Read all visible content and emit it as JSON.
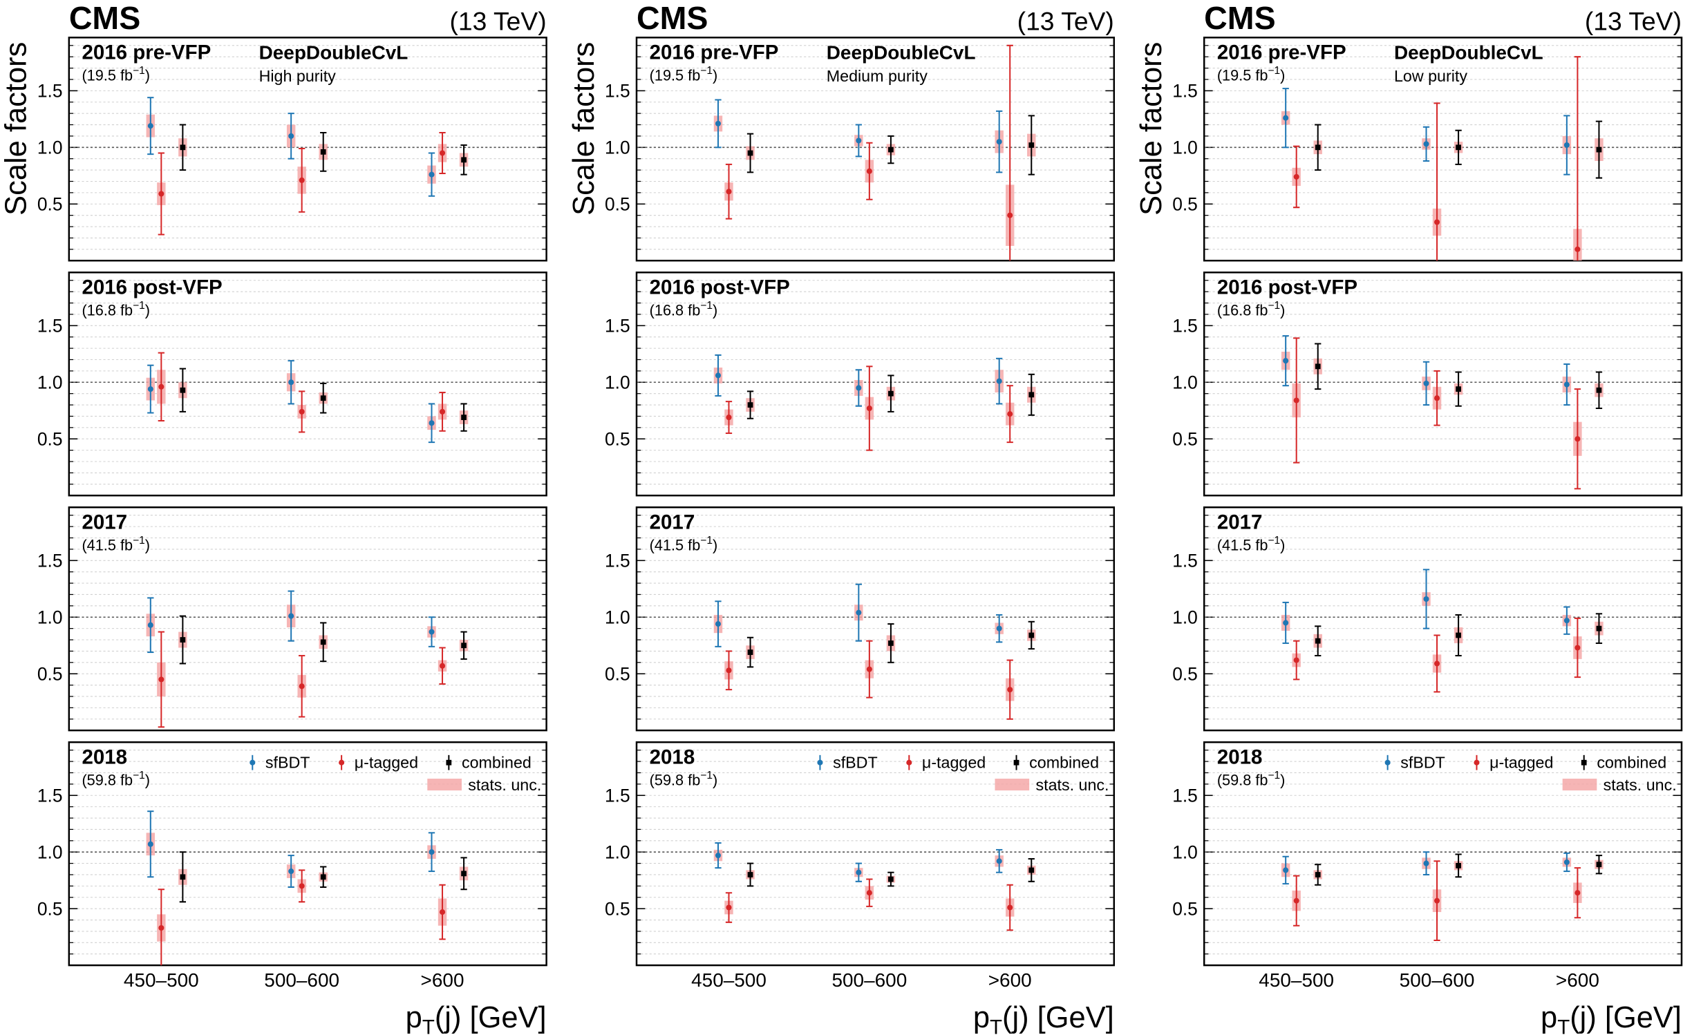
{
  "chart_data": [
    {
      "type": "errorbar",
      "cms_label": "CMS",
      "energy": "(13 TeV)",
      "ylabel": "Scale factors",
      "xlabel": [
        "p",
        "T",
        "(j) [GeV]"
      ],
      "tagger": "DeepDoubleCvL",
      "purity": "High purity",
      "categories": [
        "450–500",
        "500–600",
        ">600"
      ],
      "ylim": [
        0,
        1.97
      ],
      "yticks": [
        0.5,
        {
          "value": 1,
          "label": "1.0"
        },
        1.5
      ],
      "minor_yticks": [
        0.1,
        0.2,
        0.3,
        0.4,
        0.6,
        0.7,
        0.8,
        0.9,
        1.1,
        1.2,
        1.3,
        1.4,
        1.6,
        1.7,
        1.8,
        1.9
      ],
      "grid": true,
      "reference_line": 1,
      "legend": "upper right",
      "series": [
        {
          "name": "sfBDT",
          "color": "#1f77b4"
        },
        {
          "name": "μ-tagged",
          "color": "#d62728"
        },
        {
          "name": "combined",
          "color": "#000000"
        }
      ],
      "stat_label": "stats. unc.",
      "stat_color": "#f4a3a3",
      "panels": [
        {
          "period": "2016 pre-VFP",
          "lumi": [
            "(19.5 fb",
            "−1",
            ")"
          ],
          "series": [
            {
              "values": [
                1.19,
                1.1,
                0.76
              ],
              "errors": [
                0.25,
                0.2,
                0.19
              ],
              "stat": [
                0.1,
                0.1,
                0.08
              ]
            },
            {
              "values": [
                0.59,
                0.71,
                0.95
              ],
              "errors": [
                0.36,
                0.28,
                0.18
              ],
              "stat": [
                0.1,
                0.12,
                0.08
              ]
            },
            {
              "values": [
                1.0,
                0.96,
                0.89
              ],
              "errors": [
                0.2,
                0.17,
                0.13
              ],
              "stat": [
                0.08,
                0.07,
                0.06
              ]
            }
          ]
        },
        {
          "period": "2016 post-VFP",
          "lumi": [
            "(16.8 fb",
            "−1",
            ")"
          ],
          "series": [
            {
              "values": [
                0.94,
                1.0,
                0.64
              ],
              "errors": [
                0.21,
                0.19,
                0.17
              ],
              "stat": [
                0.1,
                0.08,
                0.06
              ]
            },
            {
              "values": [
                0.96,
                0.74,
                0.74
              ],
              "errors": [
                0.3,
                0.18,
                0.17
              ],
              "stat": [
                0.15,
                0.06,
                0.07
              ]
            },
            {
              "values": [
                0.93,
                0.86,
                0.69
              ],
              "errors": [
                0.19,
                0.13,
                0.12
              ],
              "stat": [
                0.07,
                0.05,
                0.06
              ]
            }
          ]
        },
        {
          "period": "2017",
          "lumi": [
            "(41.5 fb",
            "−1",
            ")"
          ],
          "series": [
            {
              "values": [
                0.93,
                1.01,
                0.87
              ],
              "errors": [
                0.24,
                0.22,
                0.13
              ],
              "stat": [
                0.1,
                0.1,
                0.05
              ]
            },
            {
              "values": [
                0.45,
                0.39,
                0.57
              ],
              "errors": [
                0.42,
                0.27,
                0.16
              ],
              "stat": [
                0.15,
                0.1,
                0.05
              ]
            },
            {
              "values": [
                0.8,
                0.78,
                0.75
              ],
              "errors": [
                0.21,
                0.17,
                0.12
              ],
              "stat": [
                0.07,
                0.06,
                0.05
              ]
            }
          ]
        },
        {
          "period": "2018",
          "lumi": [
            "(59.8 fb",
            "−1",
            ")"
          ],
          "series": [
            {
              "values": [
                1.07,
                0.83,
                1.0
              ],
              "errors": [
                0.29,
                0.14,
                0.17
              ],
              "stat": [
                0.1,
                0.06,
                0.06
              ]
            },
            {
              "values": [
                0.33,
                0.7,
                0.47
              ],
              "errors": [
                0.34,
                0.14,
                0.24
              ],
              "stat": [
                0.12,
                0.06,
                0.12
              ]
            },
            {
              "values": [
                0.78,
                0.78,
                0.81
              ],
              "errors": [
                0.22,
                0.09,
                0.14
              ],
              "stat": [
                0.07,
                0.04,
                0.06
              ]
            }
          ]
        }
      ]
    },
    {
      "type": "errorbar",
      "cms_label": "CMS",
      "energy": "(13 TeV)",
      "ylabel": "Scale factors",
      "xlabel": [
        "p",
        "T",
        "(j) [GeV]"
      ],
      "tagger": "DeepDoubleCvL",
      "purity": "Medium purity",
      "categories": [
        "450–500",
        "500–600",
        ">600"
      ],
      "ylim": [
        0,
        1.97
      ],
      "yticks": [
        0.5,
        {
          "value": 1,
          "label": "1.0"
        },
        1.5
      ],
      "minor_yticks": [
        0.1,
        0.2,
        0.3,
        0.4,
        0.6,
        0.7,
        0.8,
        0.9,
        1.1,
        1.2,
        1.3,
        1.4,
        1.6,
        1.7,
        1.8,
        1.9
      ],
      "grid": true,
      "reference_line": 1,
      "legend": "upper right",
      "series": [
        {
          "name": "sfBDT",
          "color": "#1f77b4"
        },
        {
          "name": "μ-tagged",
          "color": "#d62728"
        },
        {
          "name": "combined",
          "color": "#000000"
        }
      ],
      "stat_label": "stats. unc.",
      "stat_color": "#f4a3a3",
      "panels": [
        {
          "period": "2016 pre-VFP",
          "lumi": [
            "(19.5 fb",
            "−1",
            ")"
          ],
          "series": [
            {
              "values": [
                1.21,
                1.06,
                1.05
              ],
              "errors": [
                0.21,
                0.14,
                0.27
              ],
              "stat": [
                0.07,
                0.05,
                0.1
              ]
            },
            {
              "values": [
                0.61,
                0.79,
                0.4
              ],
              "errors": [
                0.24,
                0.25,
                1.5
              ],
              "stat": [
                0.08,
                0.1,
                0.27
              ]
            },
            {
              "values": [
                0.95,
                0.98,
                1.02
              ],
              "errors": [
                0.17,
                0.12,
                0.26
              ],
              "stat": [
                0.06,
                0.05,
                0.1
              ]
            }
          ]
        },
        {
          "period": "2016 post-VFP",
          "lumi": [
            "(16.8 fb",
            "−1",
            ")"
          ],
          "series": [
            {
              "values": [
                1.06,
                0.95,
                1.01
              ],
              "errors": [
                0.18,
                0.16,
                0.2
              ],
              "stat": [
                0.07,
                0.07,
                0.1
              ]
            },
            {
              "values": [
                0.69,
                0.77,
                0.72
              ],
              "errors": [
                0.14,
                0.37,
                0.25
              ],
              "stat": [
                0.07,
                0.1,
                0.1
              ]
            },
            {
              "values": [
                0.8,
                0.9,
                0.89
              ],
              "errors": [
                0.12,
                0.16,
                0.18
              ],
              "stat": [
                0.06,
                0.06,
                0.07
              ]
            }
          ]
        },
        {
          "period": "2017",
          "lumi": [
            "(41.5 fb",
            "−1",
            ")"
          ],
          "series": [
            {
              "values": [
                0.94,
                1.04,
                0.9
              ],
              "errors": [
                0.2,
                0.25,
                0.12
              ],
              "stat": [
                0.08,
                0.07,
                0.05
              ]
            },
            {
              "values": [
                0.53,
                0.54,
                0.36
              ],
              "errors": [
                0.17,
                0.25,
                0.26
              ],
              "stat": [
                0.08,
                0.08,
                0.1
              ]
            },
            {
              "values": [
                0.69,
                0.77,
                0.84
              ],
              "errors": [
                0.13,
                0.17,
                0.12
              ],
              "stat": [
                0.06,
                0.07,
                0.05
              ]
            }
          ]
        },
        {
          "period": "2018",
          "lumi": [
            "(59.8 fb",
            "−1",
            ")"
          ],
          "series": [
            {
              "values": [
                0.97,
                0.82,
                0.92
              ],
              "errors": [
                0.11,
                0.08,
                0.1
              ],
              "stat": [
                0.05,
                0.04,
                0.05
              ]
            },
            {
              "values": [
                0.51,
                0.64,
                0.51
              ],
              "errors": [
                0.13,
                0.12,
                0.2
              ],
              "stat": [
                0.06,
                0.06,
                0.08
              ]
            },
            {
              "values": [
                0.8,
                0.76,
                0.84
              ],
              "errors": [
                0.1,
                0.06,
                0.1
              ],
              "stat": [
                0.04,
                0.03,
                0.04
              ]
            }
          ]
        }
      ]
    },
    {
      "type": "errorbar",
      "cms_label": "CMS",
      "energy": "(13 TeV)",
      "ylabel": "Scale factors",
      "xlabel": [
        "p",
        "T",
        "(j) [GeV]"
      ],
      "tagger": "DeepDoubleCvL",
      "purity": "Low purity",
      "categories": [
        "450–500",
        "500–600",
        ">600"
      ],
      "ylim": [
        0,
        1.97
      ],
      "yticks": [
        0.5,
        {
          "value": 1,
          "label": "1.0"
        },
        1.5
      ],
      "minor_yticks": [
        0.1,
        0.2,
        0.3,
        0.4,
        0.6,
        0.7,
        0.8,
        0.9,
        1.1,
        1.2,
        1.3,
        1.4,
        1.6,
        1.7,
        1.8,
        1.9
      ],
      "grid": true,
      "reference_line": 1,
      "legend": "upper right",
      "series": [
        {
          "name": "sfBDT",
          "color": "#1f77b4"
        },
        {
          "name": "μ-tagged",
          "color": "#d62728"
        },
        {
          "name": "combined",
          "color": "#000000"
        }
      ],
      "stat_label": "stats. unc.",
      "stat_color": "#f4a3a3",
      "panels": [
        {
          "period": "2016 pre-VFP",
          "lumi": [
            "(19.5 fb",
            "−1",
            ")"
          ],
          "series": [
            {
              "values": [
                1.26,
                1.03,
                1.02
              ],
              "errors": [
                0.26,
                0.15,
                0.26
              ],
              "stat": [
                0.06,
                0.05,
                0.08
              ]
            },
            {
              "values": [
                0.74,
                0.34,
                0.1
              ],
              "errors": [
                0.27,
                1.05,
                1.7
              ],
              "stat": [
                0.08,
                0.12,
                0.18
              ]
            },
            {
              "values": [
                1.0,
                1.0,
                0.98
              ],
              "errors": [
                0.2,
                0.15,
                0.25
              ],
              "stat": [
                0.06,
                0.05,
                0.1
              ]
            }
          ]
        },
        {
          "period": "2016 post-VFP",
          "lumi": [
            "(16.8 fb",
            "−1",
            ")"
          ],
          "series": [
            {
              "values": [
                1.19,
                0.99,
                0.98
              ],
              "errors": [
                0.22,
                0.19,
                0.18
              ],
              "stat": [
                0.08,
                0.06,
                0.07
              ]
            },
            {
              "values": [
                0.84,
                0.86,
                0.5
              ],
              "errors": [
                0.55,
                0.24,
                0.44
              ],
              "stat": [
                0.15,
                0.1,
                0.15
              ]
            },
            {
              "values": [
                1.14,
                0.94,
                0.93
              ],
              "errors": [
                0.2,
                0.15,
                0.16
              ],
              "stat": [
                0.07,
                0.05,
                0.06
              ]
            }
          ]
        },
        {
          "period": "2017",
          "lumi": [
            "(41.5 fb",
            "−1",
            ")"
          ],
          "series": [
            {
              "values": [
                0.95,
                1.16,
                0.97
              ],
              "errors": [
                0.18,
                0.26,
                0.12
              ],
              "stat": [
                0.07,
                0.06,
                0.05
              ]
            },
            {
              "values": [
                0.62,
                0.59,
                0.73
              ],
              "errors": [
                0.17,
                0.25,
                0.26
              ],
              "stat": [
                0.06,
                0.08,
                0.1
              ]
            },
            {
              "values": [
                0.79,
                0.84,
                0.9
              ],
              "errors": [
                0.13,
                0.18,
                0.13
              ],
              "stat": [
                0.06,
                0.07,
                0.06
              ]
            }
          ]
        },
        {
          "period": "2018",
          "lumi": [
            "(59.8 fb",
            "−1",
            ")"
          ],
          "series": [
            {
              "values": [
                0.84,
                0.9,
                0.91
              ],
              "errors": [
                0.12,
                0.1,
                0.08
              ],
              "stat": [
                0.06,
                0.05,
                0.04
              ]
            },
            {
              "values": [
                0.57,
                0.57,
                0.64
              ],
              "errors": [
                0.22,
                0.35,
                0.22
              ],
              "stat": [
                0.09,
                0.1,
                0.09
              ]
            },
            {
              "values": [
                0.8,
                0.88,
                0.89
              ],
              "errors": [
                0.09,
                0.1,
                0.08
              ],
              "stat": [
                0.04,
                0.04,
                0.04
              ]
            }
          ]
        }
      ]
    }
  ]
}
